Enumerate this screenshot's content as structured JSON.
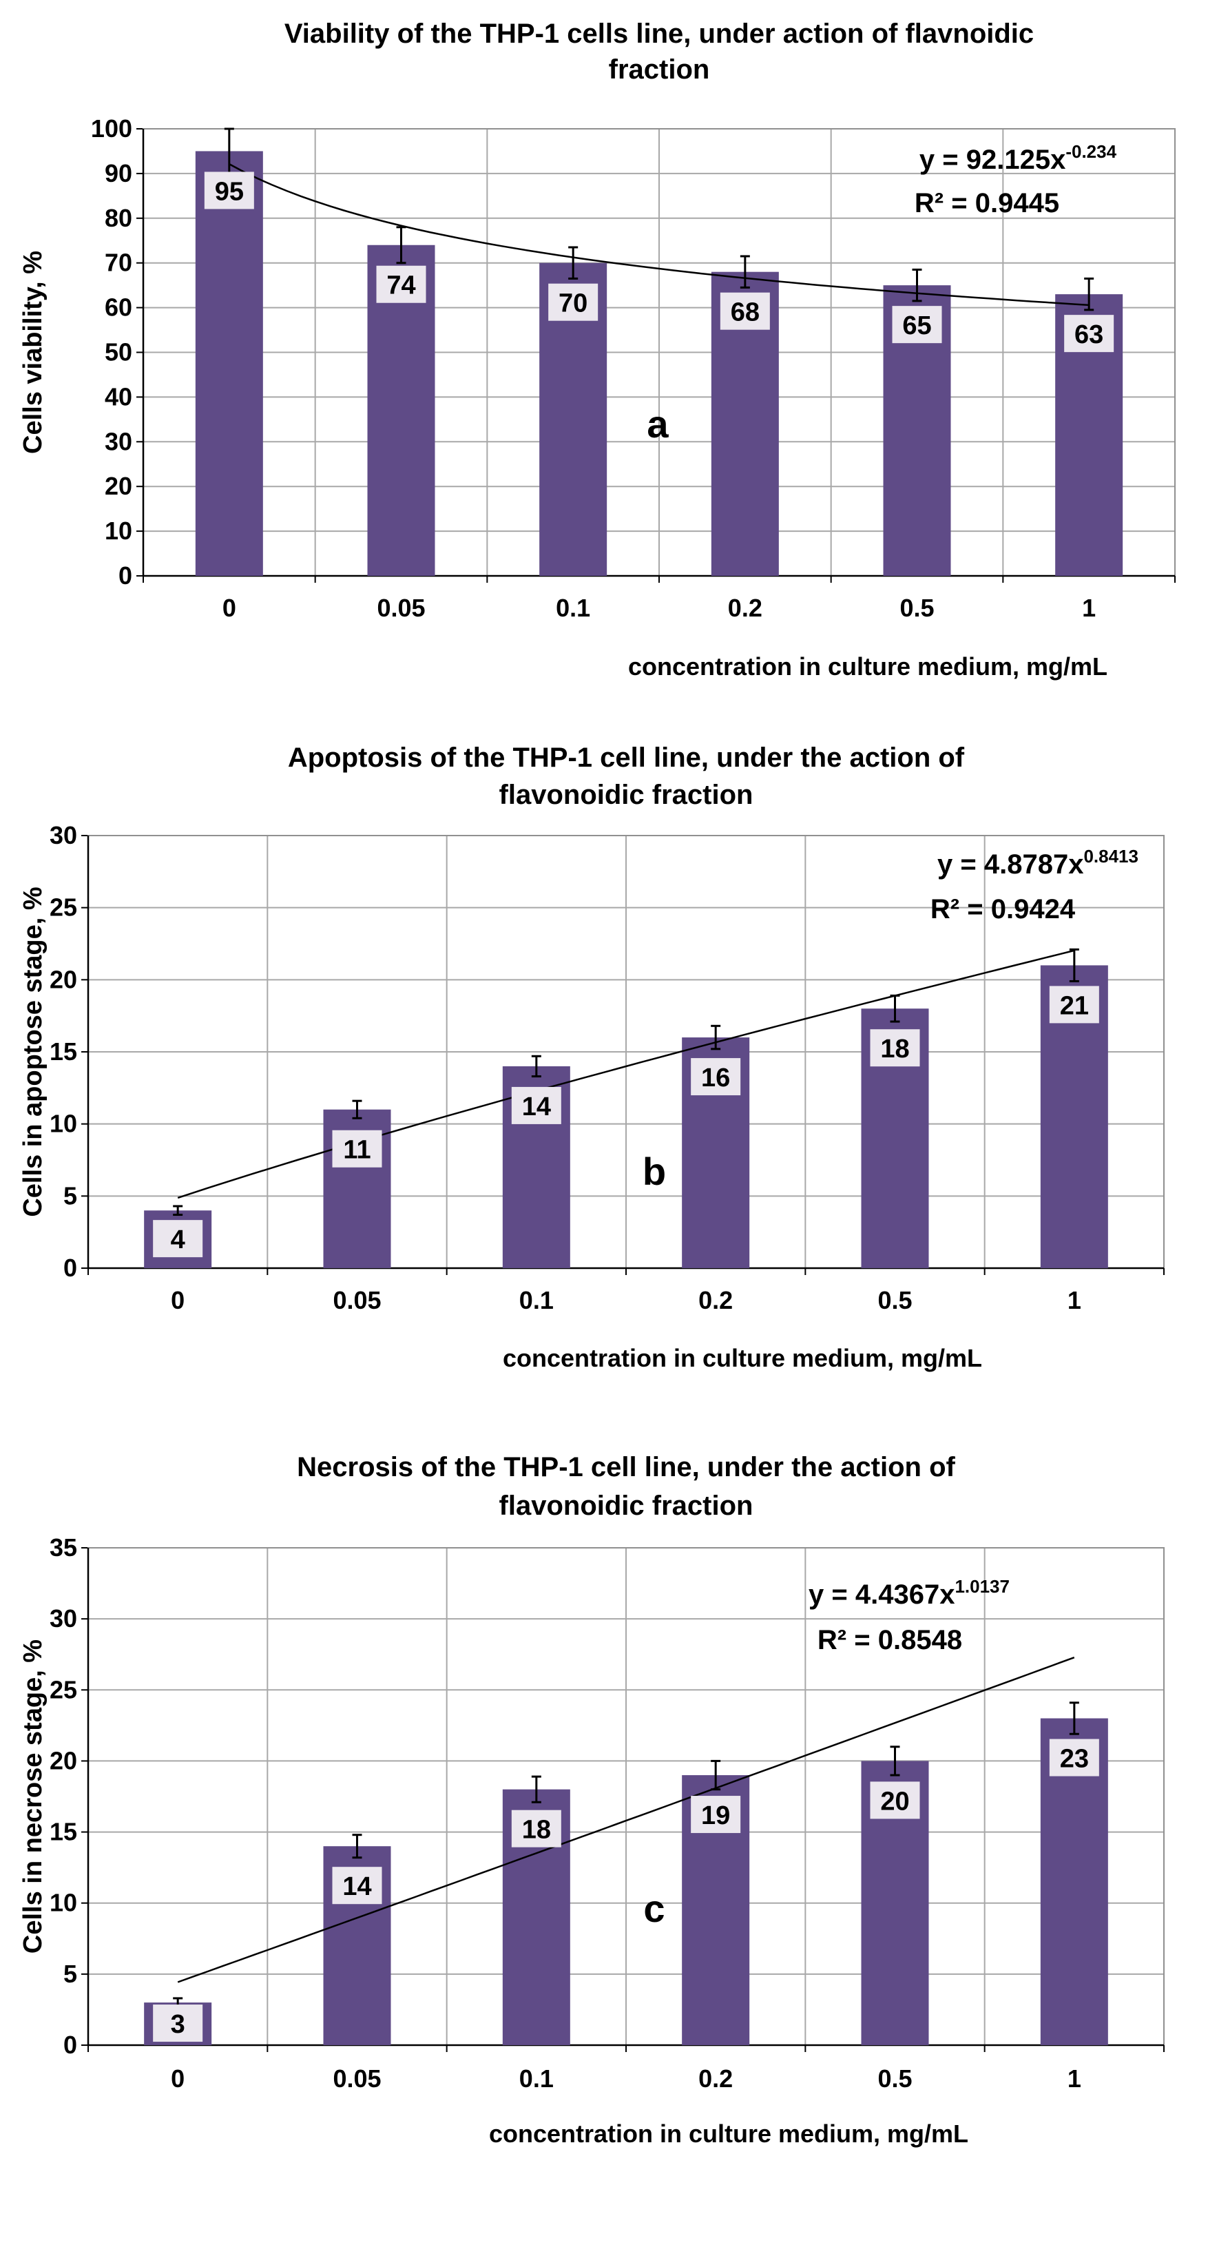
{
  "colors": {
    "bar": "#5f4b87",
    "label_box": "#ebe7ee",
    "grid": "#a8a8a8",
    "axis": "#000000"
  },
  "chart_data": [
    {
      "type": "bar",
      "panel_letter": "a",
      "title_lines": [
        "Viability of the THP-1 cells line, under action of flavnoidic",
        "fraction"
      ],
      "ylabel": "Cells viability, %",
      "xlabel": "concentration in culture medium, mg/mL",
      "categories": [
        "0",
        "0.05",
        "0.1",
        "0.2",
        "0.5",
        "1"
      ],
      "values": [
        95,
        74,
        70,
        68,
        65,
        63
      ],
      "data_labels": [
        "95",
        "74",
        "70",
        "68",
        "65",
        "63"
      ],
      "error": [
        5,
        4,
        3.5,
        3.5,
        3.5,
        3.5
      ],
      "ylim": [
        0,
        100
      ],
      "yticks": [
        0,
        10,
        20,
        30,
        40,
        50,
        60,
        70,
        80,
        90,
        100
      ],
      "ytick_labels": [
        "0",
        "10",
        "20",
        "30",
        "40",
        "50",
        "60",
        "70",
        "80",
        "90",
        "100"
      ],
      "trendline": {
        "type": "power",
        "a": 92.125,
        "b": -0.234,
        "start_value": 92
      },
      "equation": {
        "main": "y = 92.125x",
        "exponent": "-0.234",
        "r2": "R² = 0.9445"
      }
    },
    {
      "type": "bar",
      "panel_letter": "b",
      "title_lines": [
        "Apoptosis of the THP-1 cell line, under the action of",
        "flavonoidic fraction"
      ],
      "ylabel": "Cells in apoptose stage, %",
      "xlabel": "concentration in culture medium, mg/mL",
      "categories": [
        "0",
        "0.05",
        "0.1",
        "0.2",
        "0.5",
        "1"
      ],
      "values": [
        4,
        11,
        14,
        16,
        18,
        21
      ],
      "data_labels": [
        "4",
        "11",
        "14",
        "16",
        "18",
        "21"
      ],
      "error": [
        0.3,
        0.6,
        0.7,
        0.8,
        0.9,
        1.1
      ],
      "ylim": [
        0,
        30
      ],
      "yticks": [
        0,
        5,
        10,
        15,
        20,
        25,
        30
      ],
      "ytick_labels": [
        "0",
        "5",
        "10",
        "15",
        "20",
        "25",
        "30"
      ],
      "trendline": {
        "type": "power",
        "a": 4.8787,
        "b": 0.8413,
        "start_value": 4.9
      },
      "equation": {
        "main": "y = 4.8787x",
        "exponent": "0.8413",
        "r2": "R² = 0.9424"
      }
    },
    {
      "type": "bar",
      "panel_letter": "c",
      "title_lines": [
        "Necrosis of the THP-1 cell line, under the action of",
        "flavonoidic fraction"
      ],
      "ylabel": "Cells in necrose stage, %",
      "xlabel": "concentration in culture medium, mg/mL",
      "categories": [
        "0",
        "0.05",
        "0.1",
        "0.2",
        "0.5",
        "1"
      ],
      "values": [
        3,
        14,
        18,
        19,
        20,
        23
      ],
      "data_labels": [
        "3",
        "14",
        "18",
        "19",
        "20",
        "23"
      ],
      "error": [
        0.3,
        0.8,
        0.9,
        1,
        1,
        1.1
      ],
      "ylim": [
        0,
        35
      ],
      "yticks": [
        0,
        5,
        10,
        15,
        20,
        25,
        30,
        35
      ],
      "ytick_labels": [
        "0",
        "5",
        "10",
        "15",
        "20",
        "25",
        "30",
        "35"
      ],
      "trendline": {
        "type": "power",
        "a": 4.4367,
        "b": 1.0137,
        "start_value": 4.5
      },
      "equation": {
        "main": "y = 4.4367x",
        "exponent": "1.0137",
        "r2": "R² = 0.8548"
      }
    }
  ]
}
